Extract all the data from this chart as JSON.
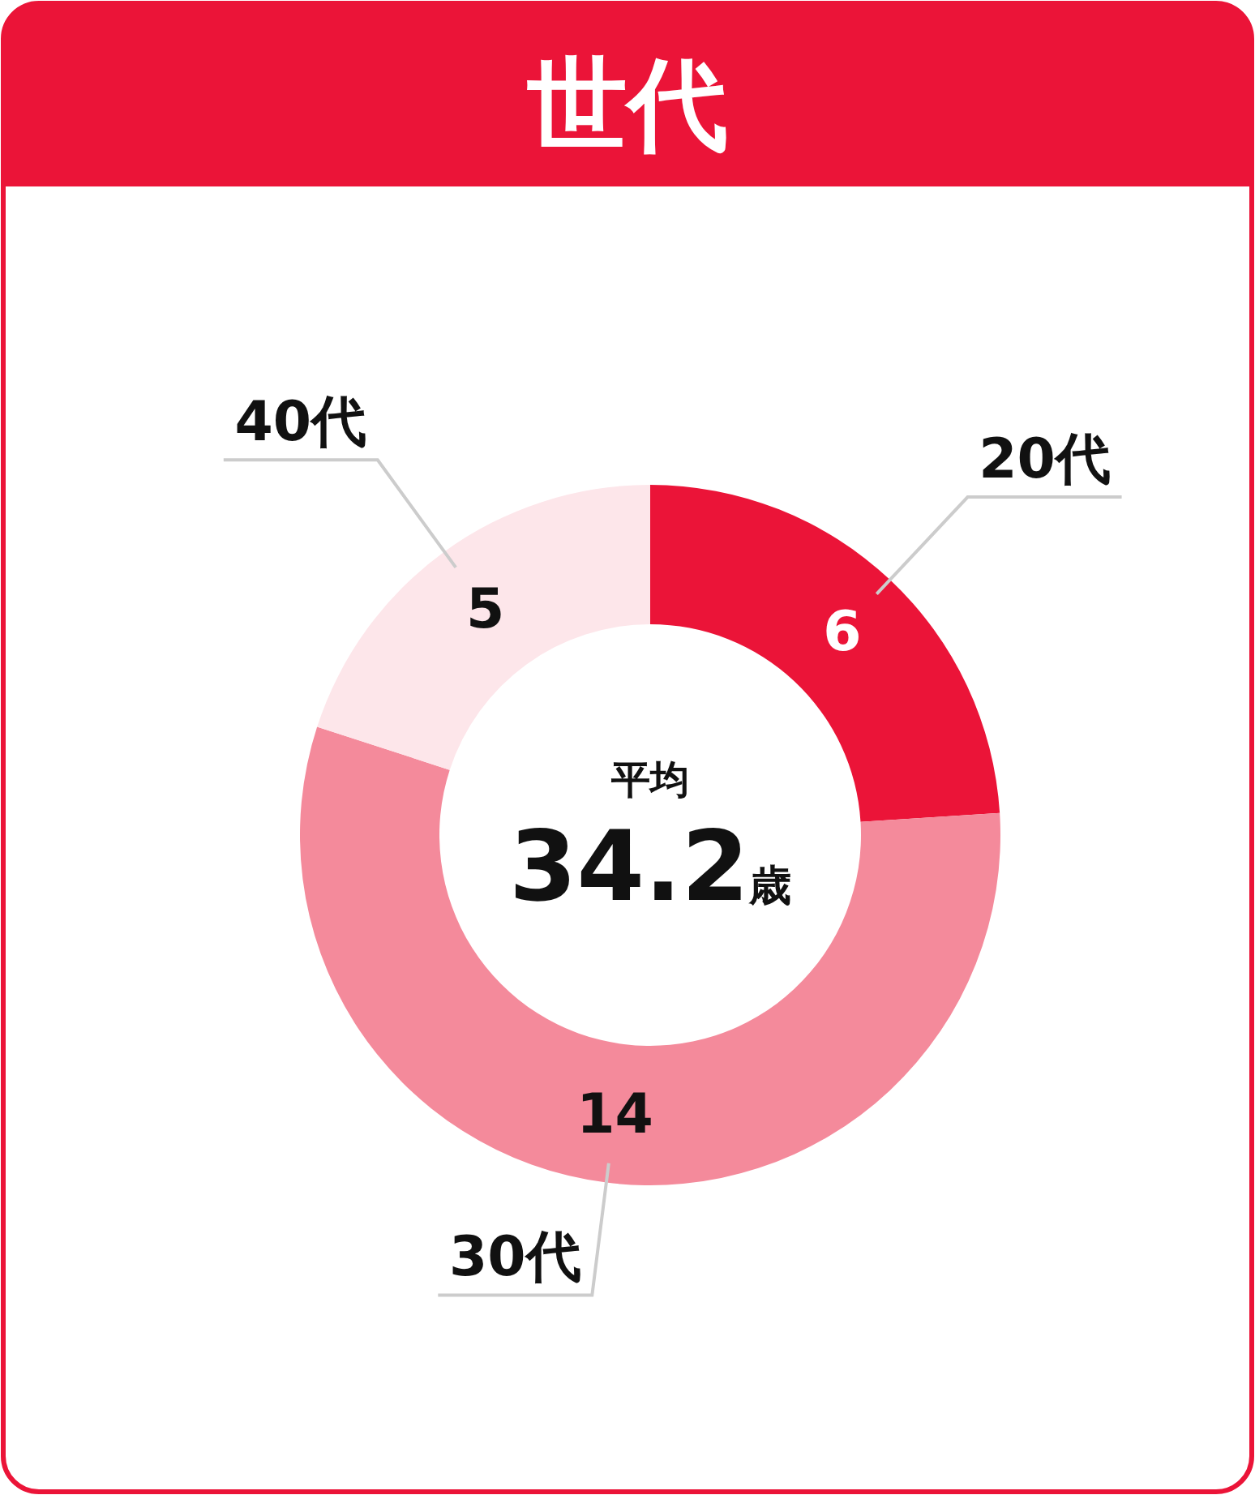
{
  "chart_data": {
    "type": "donut",
    "title": "世代",
    "categories": [
      "20代",
      "30代",
      "40代"
    ],
    "values": [
      6,
      14,
      5
    ],
    "colors": [
      "#eb1438",
      "#f48a9b",
      "#fde6ea"
    ],
    "data_labels": true,
    "annotations": [
      "平均",
      "34.2歳"
    ]
  }
}
